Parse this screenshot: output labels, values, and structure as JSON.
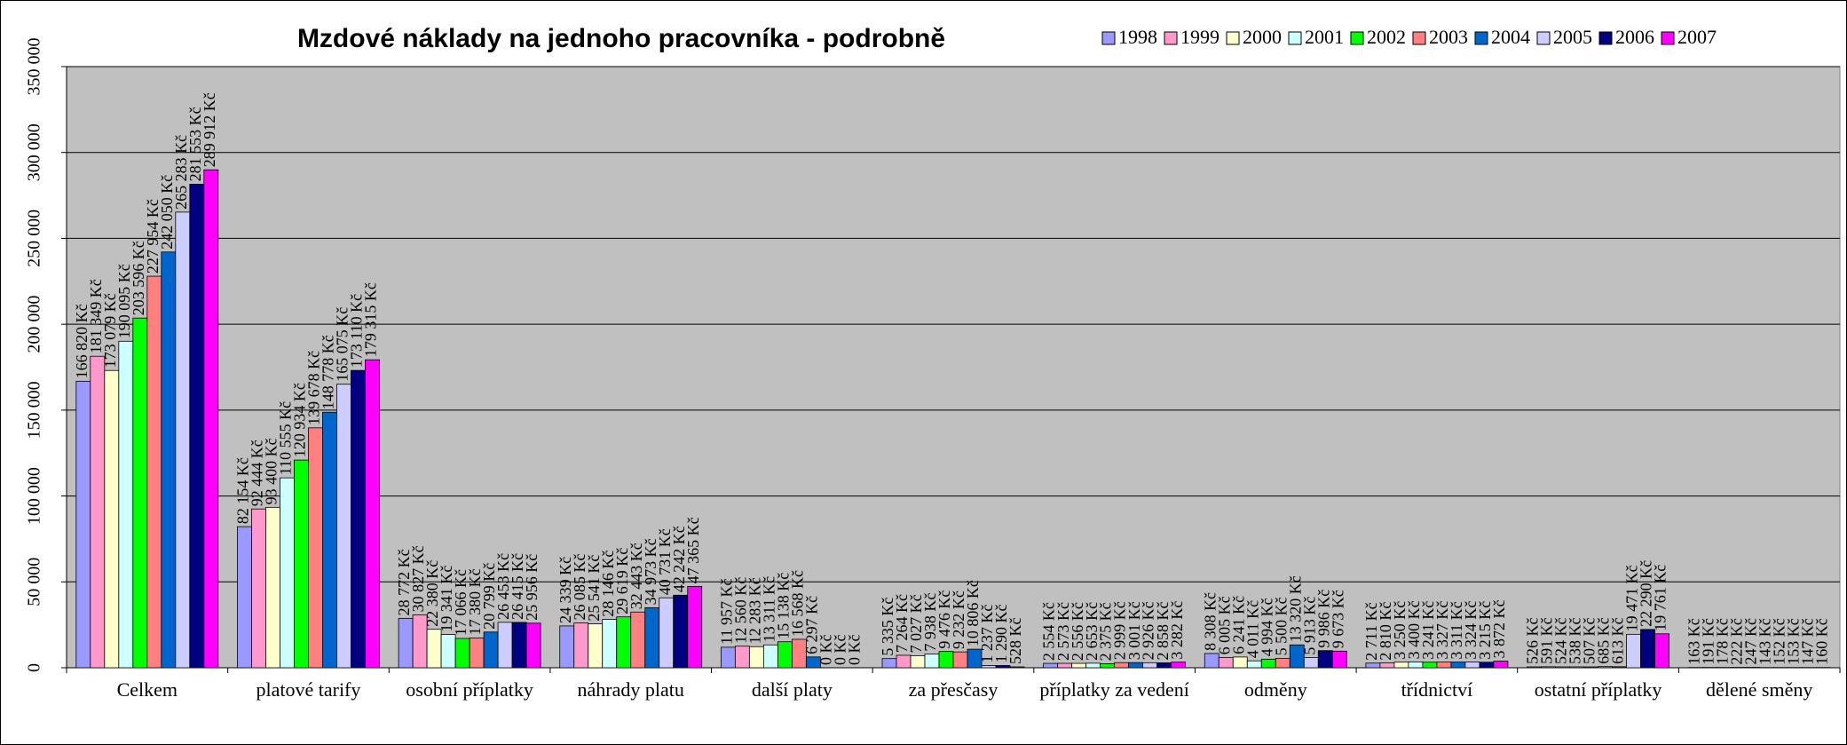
{
  "chart_data": {
    "type": "bar",
    "title": "Mzdové náklady na jednoho pracovníka - podrobně",
    "categories": [
      "Celkem",
      "platové tarify",
      "osobní příplatky",
      "náhrady platu",
      "další platy",
      "za přesčasy",
      "příplatky za vedení",
      "odměny",
      "třídnictví",
      "ostatní příplatky",
      "dělené směny"
    ],
    "ylim": [
      0,
      350000
    ],
    "yticks": [
      0,
      {
        "value": 50000,
        "label": "50 000"
      },
      {
        "value": 100000,
        "label": "100 000"
      },
      {
        "value": 150000,
        "label": "150 000"
      },
      {
        "value": 200000,
        "label": "200 000"
      },
      {
        "value": 250000,
        "label": "250 000"
      },
      {
        "value": 300000,
        "label": "300 000"
      },
      {
        "value": 350000,
        "label": "350 000"
      }
    ],
    "grid": true,
    "legend": "top-right",
    "series": [
      {
        "name": "1998",
        "color": "#9999ff",
        "values": [
          166820,
          82154,
          28772,
          24339,
          11957,
          5335,
          2554,
          8308,
          2711,
          526,
          163
        ],
        "value_labels": [
          "166 820 Kč",
          "82 154 Kč",
          "28 772 Kč",
          "24 339 Kč",
          "11 957 Kč",
          "5 335 Kč",
          "2 554 Kč",
          "8 308 Kč",
          "2 711 Kč",
          "526 Kč",
          "163 Kč"
        ]
      },
      {
        "name": "1999",
        "color": "#ff99cc",
        "values": [
          181349,
          92444,
          30827,
          26085,
          12560,
          7264,
          2573,
          6005,
          2810,
          591,
          191
        ],
        "value_labels": [
          "181 349 Kč",
          "92 444 Kč",
          "30 827 Kč",
          "26 085 Kč",
          "12 560 Kč",
          "7 264 Kč",
          "2 573 Kč",
          "6 005 Kč",
          "2 810 Kč",
          "591 Kč",
          "191 Kč"
        ]
      },
      {
        "name": "2000",
        "color": "#ffffcc",
        "values": [
          173079,
          93400,
          22380,
          25541,
          12283,
          7027,
          2556,
          6241,
          3250,
          524,
          178
        ],
        "value_labels": [
          "173 079 Kč",
          "93 400 Kč",
          "22 380 Kč",
          "25 541 Kč",
          "12 283 Kč",
          "7 027 Kč",
          "2 556 Kč",
          "6 241 Kč",
          "3 250 Kč",
          "524 Kč",
          "178 Kč"
        ]
      },
      {
        "name": "2001",
        "color": "#ccffff",
        "values": [
          190095,
          110555,
          19341,
          28146,
          13311,
          7938,
          2653,
          4011,
          3400,
          538,
          222
        ],
        "value_labels": [
          "190 095 Kč",
          "110 555 Kč",
          "19 341 Kč",
          "28 146 Kč",
          "13 311 Kč",
          "7 938 Kč",
          "2 653 Kč",
          "4 011 Kč",
          "3 400 Kč",
          "538 Kč",
          "222 Kč"
        ]
      },
      {
        "name": "2002",
        "color": "#00ff00",
        "values": [
          203596,
          120934,
          17066,
          29619,
          15138,
          9476,
          2375,
          4994,
          3241,
          507,
          247
        ],
        "value_labels": [
          "203 596 Kč",
          "120 934 Kč",
          "17 066 Kč",
          "29 619 Kč",
          "15 138 Kč",
          "9 476 Kč",
          "2 375 Kč",
          "4 994 Kč",
          "3 241 Kč",
          "507 Kč",
          "247 Kč"
        ]
      },
      {
        "name": "2003",
        "color": "#ff8080",
        "values": [
          227954,
          139678,
          17380,
          32443,
          16568,
          9232,
          2999,
          5500,
          3327,
          685,
          143
        ],
        "value_labels": [
          "227 954 Kč",
          "139 678 Kč",
          "17 380 Kč",
          "32 443 Kč",
          "16 568 Kč",
          "9 232 Kč",
          "2 999 Kč",
          "5 500 Kč",
          "3 327 Kč",
          "685 Kč",
          "143 Kč"
        ]
      },
      {
        "name": "2004",
        "color": "#0066cc",
        "values": [
          242050,
          148778,
          20799,
          34973,
          6297,
          10806,
          3001,
          13320,
          3311,
          613,
          152
        ],
        "value_labels": [
          "242 050 Kč",
          "148 778 Kč",
          "20 799 Kč",
          "34 973 Kč",
          "6 297 Kč",
          "10 806 Kč",
          "3 001 Kč",
          "13 320 Kč",
          "3 311 Kč",
          "613 Kč",
          "152 Kč"
        ]
      },
      {
        "name": "2005",
        "color": "#ccccff",
        "values": [
          265283,
          165075,
          26453,
          40731,
          0,
          1237,
          2926,
          5913,
          3324,
          19471,
          153
        ],
        "value_labels": [
          "265 283 Kč",
          "165 075 Kč",
          "26 453 Kč",
          "40 731 Kč",
          "0 Kč",
          "1 237 Kč",
          "2 926 Kč",
          "5 913 Kč",
          "3 324 Kč",
          "19 471 Kč",
          "153 Kč"
        ]
      },
      {
        "name": "2006",
        "color": "#000080",
        "values": [
          281553,
          173110,
          26415,
          42242,
          0,
          1290,
          2858,
          9986,
          3215,
          22290,
          147
        ],
        "value_labels": [
          "281 553 Kč",
          "173 110 Kč",
          "26 415 Kč",
          "42 242 Kč",
          "0 Kč",
          "1 290 Kč",
          "2 858 Kč",
          "9 986 Kč",
          "3 215 Kč",
          "22 290 Kč",
          "147 Kč"
        ]
      },
      {
        "name": "2007",
        "color": "#ff00ff",
        "values": [
          289912,
          179315,
          25956,
          47365,
          0,
          528,
          3282,
          9673,
          3872,
          19761,
          160
        ],
        "value_labels": [
          "289 912 Kč",
          "179 315 Kč",
          "25 956 Kč",
          "47 365 Kč",
          "0 Kč",
          "528 Kč",
          "3 282 Kč",
          "9 673 Kč",
          "3 872 Kč",
          "19 761 Kč",
          "160 Kč"
        ]
      }
    ]
  }
}
